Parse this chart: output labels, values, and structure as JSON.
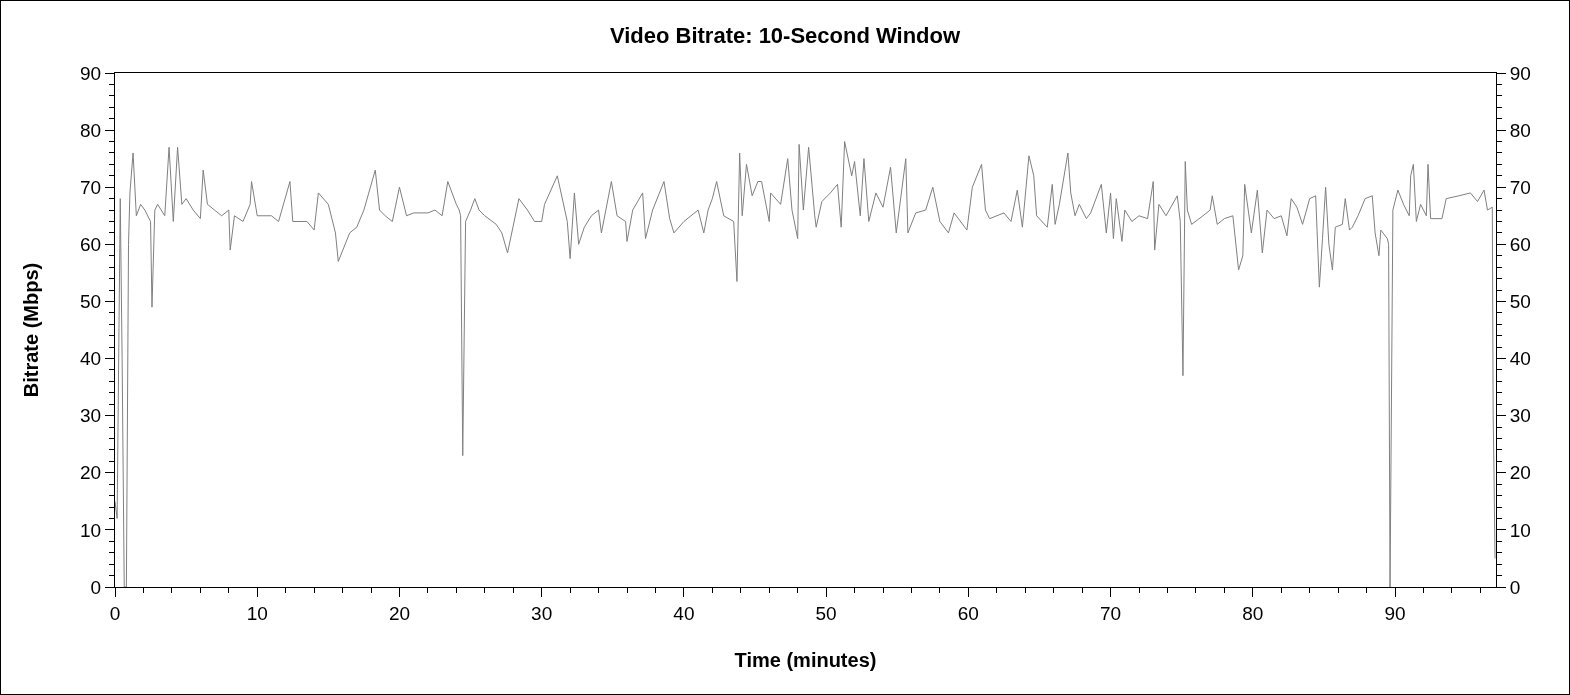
{
  "chart_data": {
    "type": "line",
    "title": "Video Bitrate: 10-Second Window",
    "xlabel": "Time (minutes)",
    "ylabel": "Bitrate (Mbps)",
    "x": [
      0,
      0.15,
      0.37,
      0.5,
      0.65,
      0.8,
      0.95,
      1.05,
      1.27,
      1.5,
      1.8,
      2.1,
      2.5,
      2.6,
      2.8,
      3.0,
      3.5,
      3.8,
      4.1,
      4.4,
      4.7,
      5.0,
      5.5,
      6.0,
      6.2,
      6.5,
      7.0,
      7.5,
      8.0,
      8.1,
      8.4,
      9.0,
      9.5,
      9.6,
      10.0,
      11,
      11.5,
      12.3,
      12.5,
      13.5,
      14.0,
      14.3,
      15.0,
      15.5,
      15.7,
      16.5,
      17,
      17.5,
      18.3,
      18.6,
      19,
      19.5,
      20.0,
      20.5,
      21,
      22,
      22.5,
      23,
      23.4,
      24.0,
      24.2,
      24.3,
      24.45,
      24.65,
      25,
      25.3,
      25.6,
      26.0,
      26.8,
      27.2,
      27.6,
      28.4,
      29,
      29.5,
      30.0,
      30.2,
      31.1,
      31.8,
      32.0,
      32.3,
      32.6,
      33.0,
      33.5,
      34,
      34.2,
      34.9,
      35.3,
      35.9,
      36.0,
      36.4,
      37.1,
      37.3,
      37.8,
      38.6,
      39.0,
      39.3,
      40,
      40.5,
      41.0,
      41.4,
      41.7,
      42.0,
      42.3,
      42.8,
      43.5,
      43.73,
      43.92,
      44.1,
      44.4,
      44.8,
      45.2,
      45.46,
      46,
      46.1,
      46.8,
      47.3,
      47.6,
      48.0,
      48.1,
      48.4,
      48.77,
      49.2,
      49.3,
      49.7,
      50.3,
      50.8,
      51.06,
      51.3,
      51.8,
      52.0,
      52.4,
      52.66,
      53.0,
      53.5,
      54.0,
      54.53,
      54.93,
      55.6,
      55.75,
      56.3,
      57.0,
      57.5,
      58.0,
      58.6,
      59.0,
      59.9,
      60.28,
      60.93,
      61.2,
      61.5,
      62.5,
      63.0,
      63.44,
      63.8,
      64.26,
      64.6,
      64.8,
      65.55,
      65.9,
      66.1,
      66.4,
      67.0,
      67.2,
      67.5,
      67.8,
      68.3,
      68.6,
      69.35,
      69.7,
      70.0,
      70.2,
      70.4,
      70.8,
      71.0,
      71.5,
      72,
      72.6,
      73.0,
      73.1,
      73.4,
      73.9,
      74.69,
      74.9,
      75.09,
      75.25,
      75.4,
      75.7,
      76.5,
      77,
      77.15,
      77.5,
      78.0,
      78.6,
      79.0,
      79.3,
      79.43,
      79.9,
      80.32,
      80.67,
      81.0,
      81.5,
      82.0,
      82.4,
      82.7,
      83.1,
      83.5,
      84.0,
      84.42,
      84.68,
      84.9,
      85.12,
      85.35,
      85.6,
      85.8,
      86.3,
      86.5,
      86.8,
      87.0,
      87.4,
      87.9,
      88.4,
      88.6,
      88.87,
      89.0,
      89.46,
      89.55,
      89.65,
      89.85,
      90.2,
      90.6,
      91.0,
      91.1,
      91.29,
      91.5,
      91.8,
      92.2,
      92.32,
      92.5,
      93.3,
      93.6,
      94.5,
      95.3,
      95.8,
      96.26,
      96.5,
      96.84,
      96.9,
      96.96,
      97.03
    ],
    "values": [
      15,
      12,
      68,
      40,
      0,
      0,
      60,
      69,
      76,
      65,
      67,
      66,
      64,
      49,
      66,
      67,
      65,
      77,
      64,
      77,
      67,
      68,
      66,
      64.5,
      73,
      67,
      66,
      65,
      66,
      59,
      65,
      64,
      67,
      71,
      65,
      65,
      64,
      71,
      64,
      64,
      62.5,
      69,
      67,
      62,
      57,
      62,
      63,
      66,
      73,
      66,
      65,
      64,
      70,
      65,
      65.5,
      65.5,
      66,
      65,
      71,
      67,
      66,
      65,
      23,
      64,
      66,
      68,
      66,
      65,
      63.5,
      62,
      58.5,
      68,
      66,
      64,
      64,
      67,
      72,
      64,
      57.5,
      69,
      60,
      63,
      65,
      66,
      62,
      71,
      65,
      64,
      60.5,
      66,
      69,
      61,
      66,
      71,
      64.5,
      62,
      64,
      65,
      66,
      62,
      66,
      68,
      71,
      65,
      64,
      53.5,
      76,
      65,
      74,
      68.5,
      71,
      71,
      64,
      69,
      67,
      75,
      66,
      61,
      77.5,
      66,
      77,
      65,
      63,
      67.5,
      69,
      70.5,
      63,
      78,
      72,
      74.5,
      65,
      75,
      64,
      69,
      66.5,
      73.5,
      62,
      75,
      62,
      65.5,
      66,
      70,
      64,
      62,
      65.5,
      62.5,
      70,
      74,
      66,
      64.5,
      65.5,
      64,
      69.5,
      63,
      75.5,
      72,
      65,
      63,
      70.5,
      63.5,
      67,
      76,
      69,
      65,
      67,
      64.5,
      65.5,
      70.5,
      62,
      69,
      61,
      68,
      60.5,
      66,
      64,
      65,
      64.5,
      71,
      59,
      67,
      65,
      68.5,
      64,
      37,
      74.5,
      66,
      63.5,
      65,
      66,
      68.5,
      63.5,
      64.5,
      65,
      55.5,
      58,
      70.5,
      62,
      69.5,
      58.5,
      66,
      64.5,
      65,
      61.5,
      68,
      66.5,
      63.5,
      68,
      68.5,
      52.5,
      61,
      70,
      60,
      55.5,
      63,
      63.5,
      68,
      62.5,
      63,
      65,
      68,
      68.5,
      62,
      58,
      62.5,
      61,
      60,
      0,
      66,
      69.5,
      67,
      65,
      72,
      74,
      64,
      67,
      65,
      74,
      64.5,
      64.5,
      68,
      68.5,
      69,
      67.5,
      69.5,
      66,
      66.5,
      30,
      20,
      5
    ],
    "color": "#808080",
    "line_style": "solid",
    "marker": "none",
    "grid": false,
    "xlim": [
      0,
      97.1
    ],
    "xticks": [
      0,
      {
        "value": 2,
        "label": null
      },
      {
        "value": 4,
        "label": null
      },
      {
        "value": 6,
        "label": null
      },
      {
        "value": 8,
        "label": null
      },
      10,
      {
        "value": 12,
        "label": null
      },
      {
        "value": 14,
        "label": null
      },
      {
        "value": 16,
        "label": null
      },
      {
        "value": 18,
        "label": null
      },
      20,
      {
        "value": 22,
        "label": null
      },
      {
        "value": 24,
        "label": null
      },
      {
        "value": 26,
        "label": null
      },
      {
        "value": 28,
        "label": null
      },
      30,
      {
        "value": 32,
        "label": null
      },
      {
        "value": 34,
        "label": null
      },
      {
        "value": 36,
        "label": null
      },
      {
        "value": 38,
        "label": null
      },
      40,
      {
        "value": 42,
        "label": null
      },
      {
        "value": 44,
        "label": null
      },
      {
        "value": 46,
        "label": null
      },
      {
        "value": 48,
        "label": null
      },
      50,
      {
        "value": 52,
        "label": null
      },
      {
        "value": 54,
        "label": null
      },
      {
        "value": 56,
        "label": null
      },
      {
        "value": 58,
        "label": null
      },
      60,
      {
        "value": 62,
        "label": null
      },
      {
        "value": 64,
        "label": null
      },
      {
        "value": 66,
        "label": null
      },
      {
        "value": 68,
        "label": null
      },
      70,
      {
        "value": 72,
        "label": null
      },
      {
        "value": 74,
        "label": null
      },
      {
        "value": 76,
        "label": null
      },
      {
        "value": 78,
        "label": null
      },
      80,
      {
        "value": 82,
        "label": null
      },
      {
        "value": 84,
        "label": null
      },
      {
        "value": 86,
        "label": null
      },
      {
        "value": 88,
        "label": null
      },
      90,
      {
        "value": 92,
        "label": null
      },
      {
        "value": 94,
        "label": null
      },
      {
        "value": 96,
        "label": null
      }
    ],
    "ylim": [
      0,
      90
    ],
    "yticks": [
      0,
      {
        "value": 2,
        "label": null
      },
      {
        "value": 4,
        "label": null
      },
      {
        "value": 6,
        "label": null
      },
      {
        "value": 8,
        "label": null
      },
      10,
      {
        "value": 12,
        "label": null
      },
      {
        "value": 14,
        "label": null
      },
      {
        "value": 16,
        "label": null
      },
      {
        "value": 18,
        "label": null
      },
      20,
      {
        "value": 22,
        "label": null
      },
      {
        "value": 24,
        "label": null
      },
      {
        "value": 26,
        "label": null
      },
      {
        "value": 28,
        "label": null
      },
      30,
      {
        "value": 32,
        "label": null
      },
      {
        "value": 34,
        "label": null
      },
      {
        "value": 36,
        "label": null
      },
      {
        "value": 38,
        "label": null
      },
      40,
      {
        "value": 42,
        "label": null
      },
      {
        "value": 44,
        "label": null
      },
      {
        "value": 46,
        "label": null
      },
      {
        "value": 48,
        "label": null
      },
      50,
      {
        "value": 52,
        "label": null
      },
      {
        "value": 54,
        "label": null
      },
      {
        "value": 56,
        "label": null
      },
      {
        "value": 58,
        "label": null
      },
      60,
      {
        "value": 62,
        "label": null
      },
      {
        "value": 64,
        "label": null
      },
      {
        "value": 66,
        "label": null
      },
      {
        "value": 68,
        "label": null
      },
      70,
      {
        "value": 72,
        "label": null
      },
      {
        "value": 74,
        "label": null
      },
      {
        "value": 76,
        "label": null
      },
      {
        "value": 78,
        "label": null
      },
      80,
      {
        "value": 82,
        "label": null
      },
      {
        "value": 84,
        "label": null
      },
      {
        "value": 86,
        "label": null
      },
      {
        "value": 88,
        "label": null
      },
      90
    ],
    "y2lim": [
      0,
      90
    ],
    "y2ticks": [
      0,
      {
        "value": 2,
        "label": null
      },
      {
        "value": 4,
        "label": null
      },
      {
        "value": 6,
        "label": null
      },
      {
        "value": 8,
        "label": null
      },
      10,
      {
        "value": 12,
        "label": null
      },
      {
        "value": 14,
        "label": null
      },
      {
        "value": 16,
        "label": null
      },
      {
        "value": 18,
        "label": null
      },
      20,
      {
        "value": 22,
        "label": null
      },
      {
        "value": 24,
        "label": null
      },
      {
        "value": 26,
        "label": null
      },
      {
        "value": 28,
        "label": null
      },
      30,
      {
        "value": 32,
        "label": null
      },
      {
        "value": 34,
        "label": null
      },
      {
        "value": 36,
        "label": null
      },
      {
        "value": 38,
        "label": null
      },
      40,
      {
        "value": 42,
        "label": null
      },
      {
        "value": 44,
        "label": null
      },
      {
        "value": 46,
        "label": null
      },
      {
        "value": 48,
        "label": null
      },
      50,
      {
        "value": 52,
        "label": null
      },
      {
        "value": 54,
        "label": null
      },
      {
        "value": 56,
        "label": null
      },
      {
        "value": 58,
        "label": null
      },
      60,
      {
        "value": 62,
        "label": null
      },
      {
        "value": 64,
        "label": null
      },
      {
        "value": 66,
        "label": null
      },
      {
        "value": 68,
        "label": null
      },
      70,
      {
        "value": 72,
        "label": null
      },
      {
        "value": 74,
        "label": null
      },
      {
        "value": 76,
        "label": null
      },
      {
        "value": 78,
        "label": null
      },
      80,
      {
        "value": 82,
        "label": null
      },
      {
        "value": 84,
        "label": null
      },
      {
        "value": 86,
        "label": null
      },
      {
        "value": 88,
        "label": null
      },
      90
    ]
  }
}
